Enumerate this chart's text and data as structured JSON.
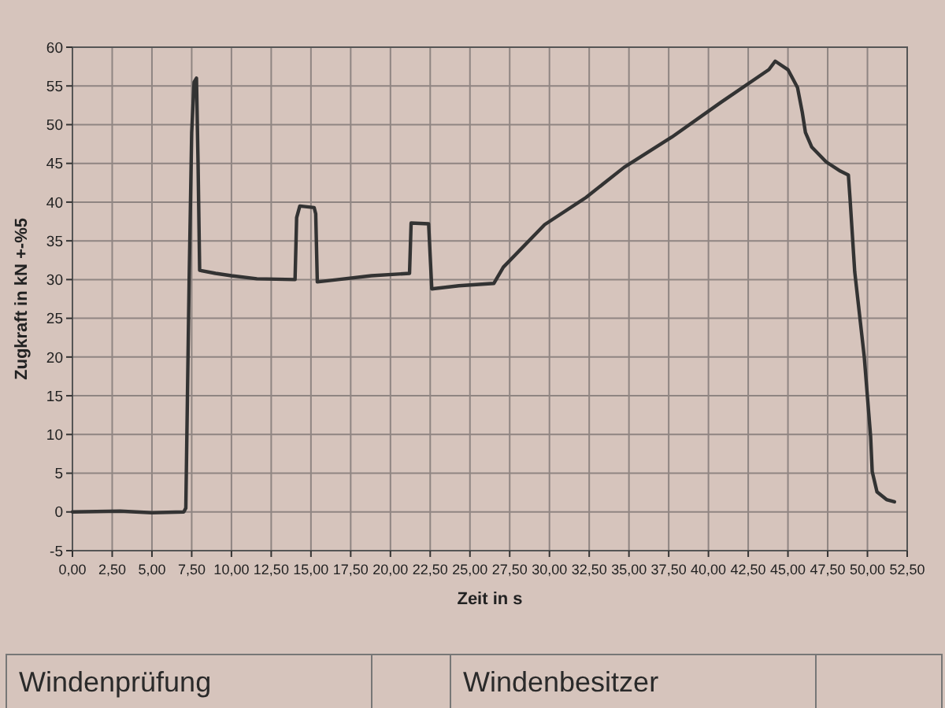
{
  "chart_data": {
    "type": "line",
    "xlabel": "Zeit in s",
    "ylabel": "Zugkraft in kN +-%5",
    "annotations": [
      "Windenprüfung",
      "Windenbesitzer"
    ],
    "x": [
      0,
      3,
      5,
      7,
      7.13,
      7.34,
      7.5,
      7.65,
      7.8,
      7.9,
      8.0,
      9,
      10,
      11.6,
      14,
      14.1,
      14.3,
      15.2,
      15.3,
      15.4,
      16.7,
      18.8,
      21.2,
      21.3,
      22.4,
      22.6,
      24.3,
      26.5,
      27.1,
      29.7,
      32.3,
      34.7,
      37.7,
      40.8,
      43.8,
      44.2,
      45,
      45.6,
      45.9,
      46.1,
      46.5,
      47.4,
      48.3,
      48.8,
      48.9,
      49.2,
      49.8,
      50.2,
      50.3,
      50.6,
      51.2,
      51.7
    ],
    "series": [
      {
        "color": "#333333",
        "values": [
          0,
          0.1,
          -0.1,
          0,
          0.5,
          30,
          49,
          55.5,
          56,
          45,
          31.2,
          30.8,
          30.5,
          30.1,
          30,
          38,
          39.5,
          39.3,
          38.5,
          29.7,
          30,
          30.5,
          30.8,
          37.3,
          37.2,
          28.8,
          29.2,
          29.5,
          31.6,
          37.1,
          40.6,
          44.5,
          48.4,
          52.9,
          57.1,
          58.2,
          57.1,
          54.8,
          51.6,
          49,
          47.1,
          45.2,
          44,
          43.5,
          40.6,
          31,
          20,
          9.7,
          5.2,
          2.6,
          1.6,
          1.3
        ]
      }
    ],
    "xlim": [
      0,
      52.5
    ],
    "ylim": [
      -5,
      60
    ],
    "xticks": [
      {
        "value": 0,
        "label": "0,00"
      },
      {
        "value": 2.5,
        "label": "2,50"
      },
      {
        "value": 5,
        "label": "5,00"
      },
      {
        "value": 7.5,
        "label": "7,50"
      },
      {
        "value": 10,
        "label": "10,00"
      },
      {
        "value": 12.5,
        "label": "12,50"
      },
      {
        "value": 15,
        "label": "15,00"
      },
      {
        "value": 17.5,
        "label": "17,50"
      },
      {
        "value": 20,
        "label": "20,00"
      },
      {
        "value": 22.5,
        "label": "22,50"
      },
      {
        "value": 25,
        "label": "25,00"
      },
      {
        "value": 27.5,
        "label": "27,50"
      },
      {
        "value": 30,
        "label": "30,00"
      },
      {
        "value": 32.5,
        "label": "32,50"
      },
      {
        "value": 35,
        "label": "35,00"
      },
      {
        "value": 37.5,
        "label": "37,50"
      },
      {
        "value": 40,
        "label": "40,00"
      },
      {
        "value": 42.5,
        "label": "42,50"
      },
      {
        "value": 45,
        "label": "45,00"
      },
      {
        "value": 47.5,
        "label": "47,50"
      },
      {
        "value": 50,
        "label": "50,00"
      },
      {
        "value": 52.5,
        "label": "52,50"
      }
    ],
    "yticks": [
      -5,
      0,
      5,
      10,
      15,
      20,
      25,
      30,
      35,
      40,
      45,
      50,
      55,
      60
    ],
    "grid": true
  }
}
